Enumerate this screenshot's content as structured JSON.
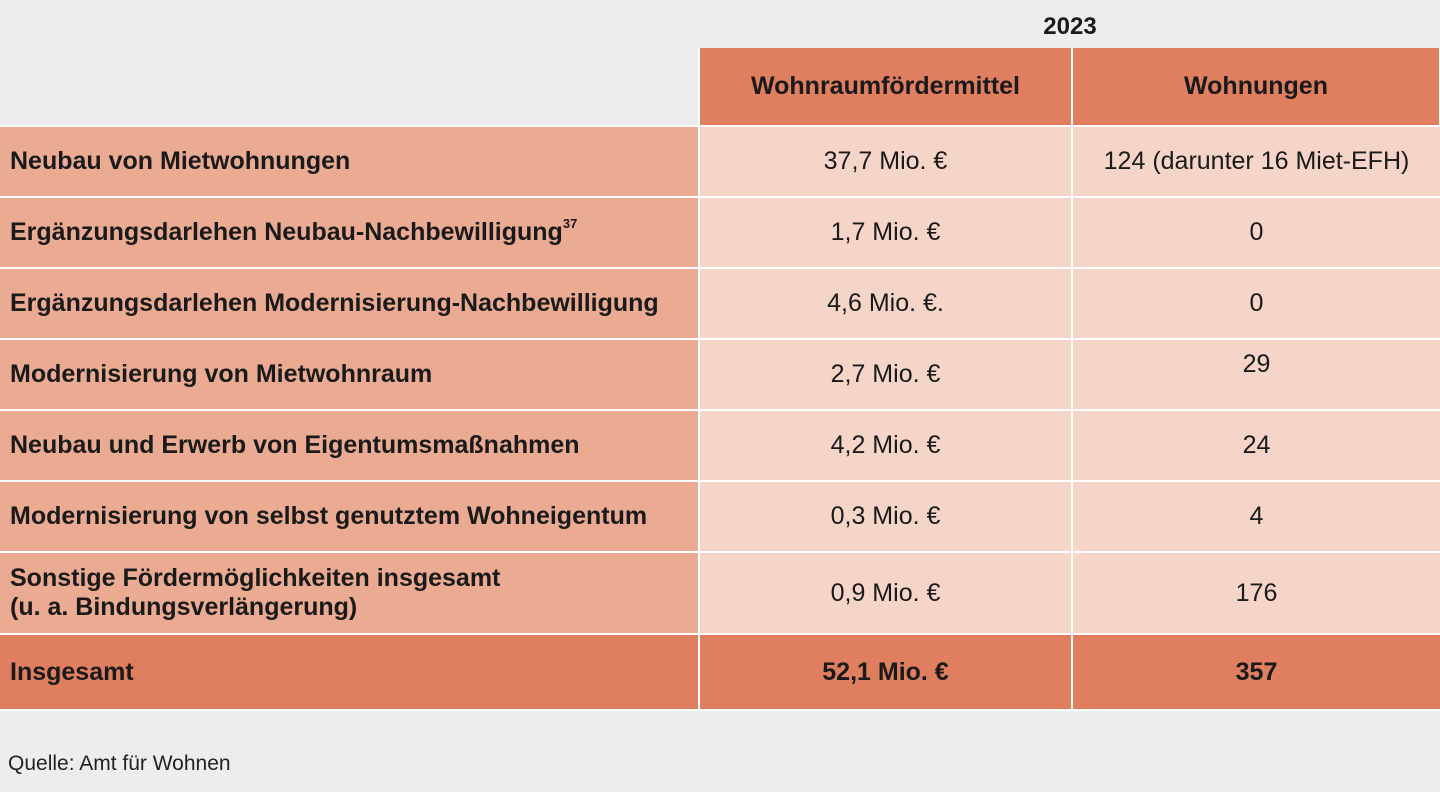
{
  "header": {
    "year": "2023",
    "col_funds": "Wohnraumfördermittel",
    "col_units": "Wohnungen"
  },
  "rows": [
    {
      "label": "Neubau von Mietwohnungen",
      "funds": "37,7 Mio. €",
      "units": "124 (darunter 16 Miet-EFH)"
    },
    {
      "label": "Ergänzungsdarlehen Neubau-Nachbewilligung",
      "footnote": "37",
      "funds": "1,7 Mio. €",
      "units": "0"
    },
    {
      "label": "Ergänzungsdarlehen Modernisierung-Nachbewilligung",
      "funds": "4,6 Mio. €.",
      "units": "0"
    },
    {
      "label": "Modernisierung von Mietwohnraum",
      "funds": "2,7 Mio. €",
      "units": "29"
    },
    {
      "label": "Neubau und Erwerb von Eigentumsmaßnahmen",
      "funds": "4,2 Mio. €",
      "units": "24"
    },
    {
      "label": "Modernisierung von selbst genutztem Wohneigentum",
      "funds": "0,3 Mio. €",
      "units": "4"
    },
    {
      "label_line1": "Sonstige Fördermöglichkeiten insgesamt",
      "label_line2": "(u. a. Bindungsverlängerung)",
      "funds": "0,9 Mio. €",
      "units": "176"
    }
  ],
  "total": {
    "label": "Insgesamt",
    "funds": "52,1 Mio. €",
    "units": "357"
  },
  "source": "Quelle: Amt für Wohnen",
  "colors": {
    "header_bg": "#e07f5f",
    "label_bg": "#ebab92",
    "value_bg": "#f4d5c7",
    "page_bg": "#ecedec"
  }
}
